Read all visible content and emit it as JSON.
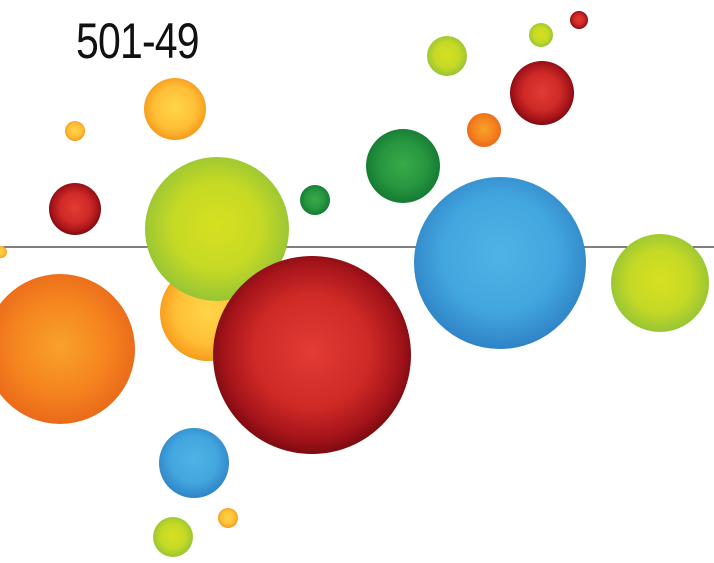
{
  "title": "501-49",
  "palette": {
    "green": "#2e9a3f",
    "lime": "#b5d624",
    "yellow_orange": "#ffc13a",
    "orange": "#f57f21",
    "red": "#c0201f",
    "blue": "#3fa2dc",
    "baseline": "#333333"
  },
  "bubbles": [
    {
      "name": "bubble-yellow-orange-left-edge",
      "color": "yellow_orange"
    },
    {
      "name": "bubble-yellow-orange-small-left",
      "color": "yellow_orange"
    },
    {
      "name": "bubble-yellow-orange-top",
      "color": "yellow_orange"
    },
    {
      "name": "bubble-red-small-left",
      "color": "red"
    },
    {
      "name": "bubble-orange-large-left",
      "color": "orange"
    },
    {
      "name": "bubble-yellow-orange-center",
      "color": "yellow_orange"
    },
    {
      "name": "bubble-lime-large-center",
      "color": "lime"
    },
    {
      "name": "bubble-green-small-center",
      "color": "green"
    },
    {
      "name": "bubble-red-largest-center",
      "color": "red"
    },
    {
      "name": "bubble-blue-bottom",
      "color": "blue"
    },
    {
      "name": "bubble-yellow-orange-tiny-bottom",
      "color": "yellow_orange"
    },
    {
      "name": "bubble-lime-bottom",
      "color": "lime"
    },
    {
      "name": "bubble-green-top-center",
      "color": "green"
    },
    {
      "name": "bubble-lime-top-right",
      "color": "lime"
    },
    {
      "name": "bubble-orange-top-right",
      "color": "orange"
    },
    {
      "name": "bubble-lime-tiny-top-right",
      "color": "lime"
    },
    {
      "name": "bubble-red-tiny-top-right",
      "color": "red"
    },
    {
      "name": "bubble-red-top-right",
      "color": "red"
    },
    {
      "name": "bubble-blue-large-right",
      "color": "blue"
    },
    {
      "name": "bubble-lime-right-edge",
      "color": "lime"
    }
  ]
}
